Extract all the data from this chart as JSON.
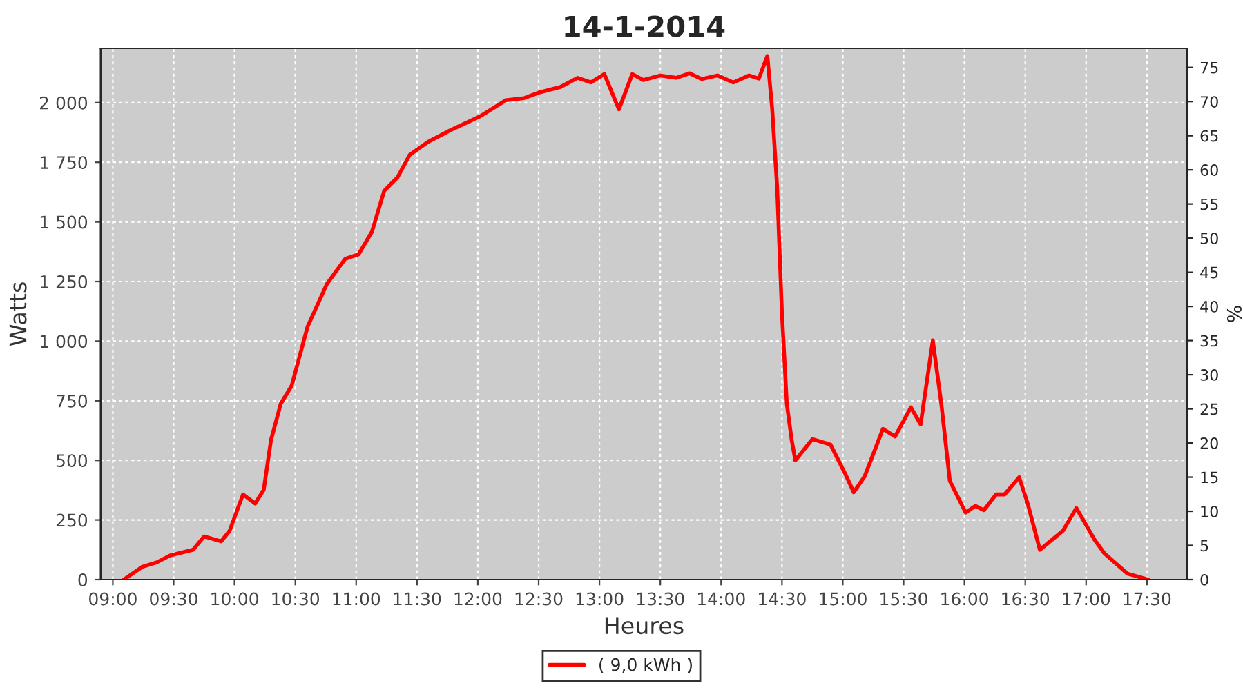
{
  "chart_data": {
    "type": "line",
    "title": "14-1-2014",
    "xlabel": "Heures",
    "ylabel": "Watts",
    "y2label": "%",
    "xlim": [
      8.9,
      17.83
    ],
    "ylim": [
      0,
      2228
    ],
    "y2lim": [
      0,
      77.8
    ],
    "xticks": [
      {
        "value": 9,
        "label": "09:00"
      },
      {
        "value": 9.5,
        "label": "09:30"
      },
      {
        "value": 10,
        "label": "10:00"
      },
      {
        "value": 10.5,
        "label": "10:30"
      },
      {
        "value": 11,
        "label": "11:00"
      },
      {
        "value": 11.5,
        "label": "11:30"
      },
      {
        "value": 12,
        "label": "12:00"
      },
      {
        "value": 12.5,
        "label": "12:30"
      },
      {
        "value": 13,
        "label": "13:00"
      },
      {
        "value": 13.5,
        "label": "13:30"
      },
      {
        "value": 14,
        "label": "14:00"
      },
      {
        "value": 14.5,
        "label": "14:30"
      },
      {
        "value": 15,
        "label": "15:00"
      },
      {
        "value": 15.5,
        "label": "15:30"
      },
      {
        "value": 16,
        "label": "16:00"
      },
      {
        "value": 16.5,
        "label": "16:30"
      },
      {
        "value": 17,
        "label": "17:00"
      },
      {
        "value": 17.5,
        "label": "17:30"
      }
    ],
    "yticks": [
      0,
      250,
      500,
      750,
      {
        "value": 1000,
        "label": "1 000"
      },
      {
        "value": 1250,
        "label": "1 250"
      },
      {
        "value": 1500,
        "label": "1 500"
      },
      {
        "value": 1750,
        "label": "1 750"
      },
      {
        "value": 2000,
        "label": "2 000"
      }
    ],
    "y2ticks": [
      0,
      5,
      10,
      15,
      20,
      25,
      30,
      35,
      40,
      45,
      50,
      55,
      60,
      65,
      70,
      75
    ],
    "grid": true,
    "legend": "bottom",
    "marker": "none",
    "line_style": "solid",
    "series": [
      {
        "name": "( 9,0 kWh )",
        "color": "#ff0000",
        "x": [
          9.09,
          9.24,
          9.36,
          9.47,
          9.66,
          9.75,
          9.89,
          9.96,
          10.07,
          10.17,
          10.24,
          10.3,
          10.38,
          10.47,
          10.53,
          10.6,
          10.76,
          10.91,
          11.02,
          11.13,
          11.23,
          11.34,
          11.44,
          11.59,
          11.78,
          12.02,
          12.23,
          12.38,
          12.5,
          12.68,
          12.82,
          12.93,
          13.04,
          13.16,
          13.27,
          13.36,
          13.5,
          13.63,
          13.74,
          13.84,
          13.97,
          14.1,
          14.23,
          14.31,
          14.38,
          14.42,
          14.46,
          14.5,
          14.54,
          14.58,
          14.61,
          14.75,
          14.9,
          15.03,
          15.09,
          15.18,
          15.33,
          15.43,
          15.56,
          15.64,
          15.74,
          15.81,
          15.88,
          16.01,
          16.09,
          16.16,
          16.26,
          16.33,
          16.45,
          16.52,
          16.62,
          16.81,
          16.92,
          17.07,
          17.15,
          17.34,
          17.51
        ],
        "values": [
          0,
          53,
          72,
          101,
          125,
          181,
          160,
          205,
          357,
          319,
          376,
          585,
          737,
          813,
          927,
          1060,
          1240,
          1345,
          1364,
          1459,
          1630,
          1687,
          1781,
          1835,
          1886,
          1943,
          2010,
          2019,
          2042,
          2066,
          2104,
          2085,
          2120,
          1972,
          2120,
          2095,
          2114,
          2104,
          2123,
          2099,
          2114,
          2085,
          2114,
          2101,
          2196,
          1972,
          1648,
          1117,
          737,
          585,
          500,
          589,
          566,
          433,
          366,
          433,
          632,
          600,
          722,
          651,
          1003,
          737,
          414,
          281,
          309,
          291,
          357,
          357,
          429,
          319,
          125,
          205,
          300,
          167,
          110,
          25,
          0
        ]
      }
    ]
  }
}
